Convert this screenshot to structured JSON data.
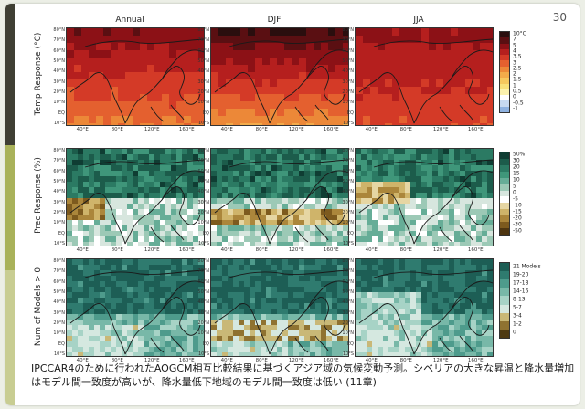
{
  "page_number": "30",
  "columns": [
    "Annual",
    "DJF",
    "JJA"
  ],
  "rows": [
    {
      "label": "Temp Response (°C)",
      "theme": "temp"
    },
    {
      "label": "Prec Response (%)",
      "theme": "prec"
    },
    {
      "label": "Num of Models > 0",
      "theme": "models"
    }
  ],
  "lat_ticks": [
    "80°N",
    "70°N",
    "60°N",
    "50°N",
    "40°N",
    "30°N",
    "20°N",
    "10°N",
    "EQ",
    "10°S"
  ],
  "lon_ticks": [
    "40°E",
    "80°E",
    "120°E",
    "160°E"
  ],
  "colorbars": [
    {
      "name": "temp",
      "labels": [
        "10°C",
        "7",
        "5",
        "4",
        "3.5",
        "3",
        "2.5",
        "2",
        "1.5",
        "1",
        "0.5",
        "0",
        "-0.5",
        "-1"
      ],
      "colors": [
        "#2a0e0e",
        "#5a0f12",
        "#8c1116",
        "#b51f1e",
        "#d43a27",
        "#e4602f",
        "#ec8838",
        "#f2ab4a",
        "#f6c85e",
        "#f9e07a",
        "#fcf2ad",
        "#ffffff",
        "#c7d9f0",
        "#8fb2e0"
      ]
    },
    {
      "name": "prec",
      "labels": [
        "50%",
        "30",
        "20",
        "15",
        "10",
        "5",
        "0",
        "-5",
        "-10",
        "-15",
        "-20",
        "-30",
        "-50"
      ],
      "colors": [
        "#0f3d33",
        "#1c5c4b",
        "#2b7a63",
        "#3f967a",
        "#66ad97",
        "#9cc9b6",
        "#d7e6de",
        "#ffffff",
        "#e6d6a3",
        "#cfb46a",
        "#ab863b",
        "#7d5a1e",
        "#4e3510"
      ]
    },
    {
      "name": "models",
      "labels": [
        "21 Models",
        "19-20",
        "17-18",
        "14-16",
        "8-13",
        "5-7",
        "3-4",
        "1-2",
        "0"
      ],
      "colors": [
        "#1d5e55",
        "#2f7b6f",
        "#4e9b8c",
        "#78b8a8",
        "#a7d3c6",
        "#d5e8e0",
        "#c9b877",
        "#8f7231",
        "#4e3a12"
      ]
    }
  ],
  "caption": "IPCCAR4のために行われたAOGCM相互比較結果に基づくアジア域の気候変動予測。シベリアの大きな昇温と降水量増加はモデル間一致度が高いが、降水量低下地域のモデル間一致度は低い (11章)",
  "map_panels": [
    {
      "id": "temp-annual",
      "theme": "temp",
      "variant": 0
    },
    {
      "id": "temp-djf",
      "theme": "temp",
      "variant": 1
    },
    {
      "id": "temp-jja",
      "theme": "temp",
      "variant": 2
    },
    {
      "id": "prec-annual",
      "theme": "prec",
      "variant": 0
    },
    {
      "id": "prec-djf",
      "theme": "prec",
      "variant": 1
    },
    {
      "id": "prec-jja",
      "theme": "prec",
      "variant": 2
    },
    {
      "id": "models-annual",
      "theme": "models",
      "variant": 0
    },
    {
      "id": "models-djf",
      "theme": "models",
      "variant": 1
    },
    {
      "id": "models-jja",
      "theme": "models",
      "variant": 2
    }
  ]
}
